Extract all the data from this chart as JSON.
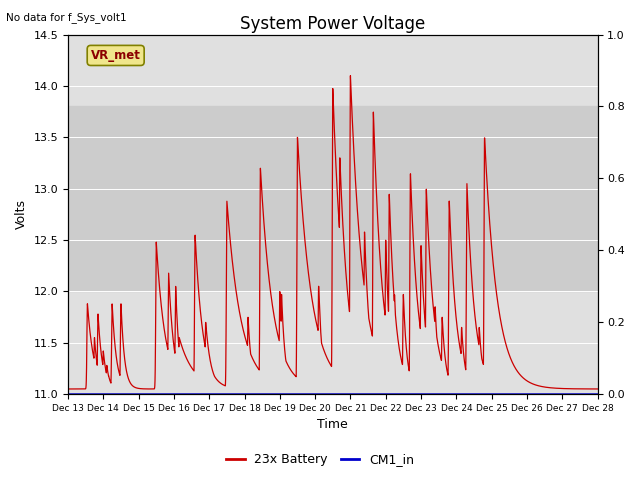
{
  "title": "System Power Voltage",
  "no_data_label": "No data for f_Sys_volt1",
  "ylabel_left": "Volts",
  "xlabel": "Time",
  "ylim_left": [
    11.0,
    14.5
  ],
  "ylim_right": [
    0.0,
    1.0
  ],
  "background_color": "#ffffff",
  "plot_bg_color": "#e0e0e0",
  "shaded_band": [
    12.0,
    13.8
  ],
  "shaded_band_color": "#cccccc",
  "vr_met_label": "VR_met",
  "vr_met_box_facecolor": "#f0e68c",
  "vr_met_box_edgecolor": "#808000",
  "x_tick_labels": [
    "Dec 13",
    "Dec 14",
    "Dec 15",
    "Dec 16",
    "Dec 17",
    "Dec 18",
    "Dec 19",
    "Dec 20",
    "Dec 21",
    "Dec 22",
    "Dec 23",
    "Dec 24",
    "Dec 25",
    "Dec 26",
    "Dec 27",
    "Dec 28"
  ],
  "legend_entries": [
    "23x Battery",
    "CM1_in"
  ],
  "legend_colors": [
    "#cc0000",
    "#0000cc"
  ],
  "line_color_battery": "#cc0000",
  "line_color_cm1": "#0000cc",
  "title_fontsize": 12,
  "label_fontsize": 9,
  "tick_fontsize": 8,
  "spikes": [
    {
      "t": 0.55,
      "peak": 11.88,
      "decay": 0.18
    },
    {
      "t": 0.75,
      "peak": 11.55,
      "decay": 0.1
    },
    {
      "t": 0.85,
      "peak": 11.78,
      "decay": 0.12
    },
    {
      "t": 1.0,
      "peak": 11.42,
      "decay": 0.1
    },
    {
      "t": 1.1,
      "peak": 11.28,
      "decay": 0.08
    },
    {
      "t": 1.15,
      "peak": 11.18,
      "decay": 0.08
    },
    {
      "t": 1.25,
      "peak": 11.88,
      "decay": 0.12
    },
    {
      "t": 1.5,
      "peak": 11.88,
      "decay": 0.1
    },
    {
      "t": 1.7,
      "peak": 11.05,
      "decay": 0.08
    },
    {
      "t": 2.0,
      "peak": 11.05,
      "decay": 0.3
    },
    {
      "t": 2.5,
      "peak": 12.48,
      "decay": 0.25
    },
    {
      "t": 2.85,
      "peak": 12.18,
      "decay": 0.15
    },
    {
      "t": 3.05,
      "peak": 12.05,
      "decay": 0.1
    },
    {
      "t": 3.15,
      "peak": 11.55,
      "decay": 0.4
    },
    {
      "t": 3.6,
      "peak": 12.55,
      "decay": 0.22
    },
    {
      "t": 3.9,
      "peak": 11.7,
      "decay": 0.15
    },
    {
      "t": 4.5,
      "peak": 12.88,
      "decay": 0.4
    },
    {
      "t": 5.1,
      "peak": 11.75,
      "decay": 0.1
    },
    {
      "t": 5.45,
      "peak": 13.2,
      "decay": 0.35
    },
    {
      "t": 6.0,
      "peak": 12.0,
      "decay": 0.1
    },
    {
      "t": 6.05,
      "peak": 11.97,
      "decay": 0.1
    },
    {
      "t": 6.5,
      "peak": 13.5,
      "decay": 0.4
    },
    {
      "t": 7.1,
      "peak": 12.05,
      "decay": 0.1
    },
    {
      "t": 7.5,
      "peak": 13.98,
      "decay": 0.3
    },
    {
      "t": 7.7,
      "peak": 13.3,
      "decay": 0.25
    },
    {
      "t": 8.0,
      "peak": 14.1,
      "decay": 0.35
    },
    {
      "t": 8.4,
      "peak": 12.58,
      "decay": 0.15
    },
    {
      "t": 8.65,
      "peak": 13.75,
      "decay": 0.25
    },
    {
      "t": 9.0,
      "peak": 12.5,
      "decay": 0.12
    },
    {
      "t": 9.1,
      "peak": 12.95,
      "decay": 0.18
    },
    {
      "t": 9.25,
      "peak": 11.97,
      "decay": 0.1
    },
    {
      "t": 9.5,
      "peak": 11.97,
      "decay": 0.1
    },
    {
      "t": 9.7,
      "peak": 13.15,
      "decay": 0.22
    },
    {
      "t": 10.0,
      "peak": 12.45,
      "decay": 0.15
    },
    {
      "t": 10.15,
      "peak": 13.0,
      "decay": 0.22
    },
    {
      "t": 10.4,
      "peak": 11.85,
      "decay": 0.1
    },
    {
      "t": 10.6,
      "peak": 11.75,
      "decay": 0.1
    },
    {
      "t": 10.8,
      "peak": 12.88,
      "decay": 0.2
    },
    {
      "t": 11.15,
      "peak": 11.65,
      "decay": 0.1
    },
    {
      "t": 11.3,
      "peak": 13.05,
      "decay": 0.22
    },
    {
      "t": 11.65,
      "peak": 11.65,
      "decay": 0.1
    },
    {
      "t": 11.8,
      "peak": 13.5,
      "decay": 0.35
    }
  ],
  "base_voltage": 11.05
}
